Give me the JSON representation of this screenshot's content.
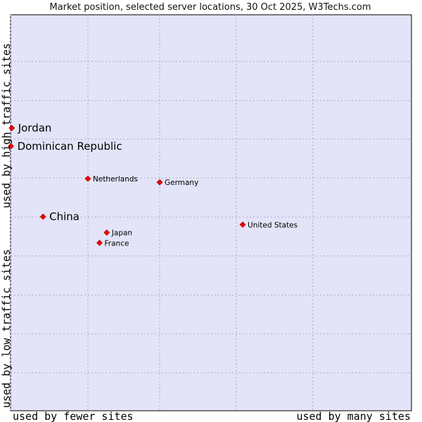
{
  "chart_data": {
    "type": "scatter",
    "title": "Market position, selected server locations, 30 Oct 2025, W3Techs.com",
    "xlabel_left": "used by fewer sites",
    "xlabel_right": "used by many sites",
    "ylabel_top": "used by high traffic sites",
    "ylabel_bottom": "used by low traffic sites",
    "xlim": [
      0,
      100
    ],
    "ylim": [
      0,
      100
    ],
    "grid": true,
    "x_gridlines": [
      0,
      19.3,
      37.2,
      56.3,
      75.4
    ],
    "y_gridlines": [
      9.6,
      19.4,
      29.2,
      39.1,
      48.9,
      58.8,
      68.6,
      78.3,
      88.2
    ],
    "point_color": "#ee0000",
    "plot_background": "#e4e4f8",
    "grid_color": "#a8a8c8",
    "points": [
      {
        "label": "Jordan",
        "x": 0.3,
        "y": 71.4,
        "size": "large"
      },
      {
        "label": "Dominican Republic",
        "x": 0.1,
        "y": 66.8,
        "size": "large"
      },
      {
        "label": "Netherlands",
        "x": 19.3,
        "y": 58.6,
        "size": "small"
      },
      {
        "label": "Germany",
        "x": 37.2,
        "y": 57.7,
        "size": "small"
      },
      {
        "label": "China",
        "x": 8.1,
        "y": 49.0,
        "size": "large"
      },
      {
        "label": "United States",
        "x": 57.9,
        "y": 47.0,
        "size": "small"
      },
      {
        "label": "Japan",
        "x": 24.0,
        "y": 45.0,
        "size": "small"
      },
      {
        "label": "France",
        "x": 22.2,
        "y": 42.4,
        "size": "small"
      }
    ]
  }
}
